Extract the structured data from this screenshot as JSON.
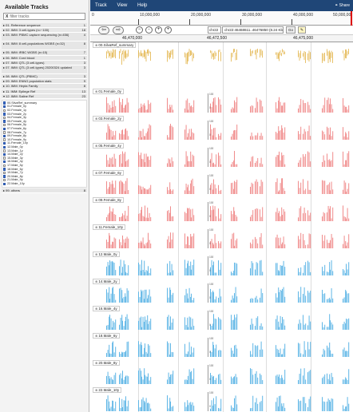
{
  "sidebar": {
    "title": "Available Tracks",
    "filter_placeholder": "filter tracks",
    "filter_clear": "X",
    "categories": [
      {
        "label": "01. Reference sequence",
        "count": "1"
      },
      {
        "label": "02. IMM: 3 cell-types (n=~100)",
        "count": "18"
      },
      {
        "label": "03. IMM: PBMC capture sequencing (n=456)",
        "count": "4"
      },
      {
        "label": "04. IMM: 8 cell-populations WGBS (n=32)",
        "count": "8"
      },
      {
        "label": "05. IMM: iRBC WGBS (n=15)",
        "count": "7"
      },
      {
        "label": "06. IMM: Cord blood",
        "count": "1"
      },
      {
        "label": "07. IMM: QTL (3 cell-types)",
        "count": "3"
      },
      {
        "label": "07. IMM: QTL (3 cell-types) 20200324 updated",
        "count": "3"
      },
      {
        "label": "08. IMM: QTL (PBMC)",
        "count": "3"
      },
      {
        "label": "09. IMM: ENNG population stats",
        "count": "9"
      },
      {
        "label": "10. IMM: Hepta Family",
        "count": "8"
      },
      {
        "label": "11. IMM: Epilege Ref",
        "count": "13"
      },
      {
        "label": "12. IMM: Saline Ref",
        "count": "23"
      }
    ],
    "tracks": [
      {
        "label": "00.SilvaRef_summary",
        "checked": true
      },
      {
        "label": "01.Female_0y",
        "checked": true
      },
      {
        "label": "02.Female_1y",
        "checked": false
      },
      {
        "label": "03.Female_2y",
        "checked": true
      },
      {
        "label": "04.Female_3y",
        "checked": false
      },
      {
        "label": "05.Female_4y",
        "checked": true
      },
      {
        "label": "06.Female_5y",
        "checked": false
      },
      {
        "label": "07.Female_6y",
        "checked": true
      },
      {
        "label": "08.Female_7y",
        "checked": false
      },
      {
        "label": "09.Female_8y",
        "checked": true
      },
      {
        "label": "10.Female_9y",
        "checked": false
      },
      {
        "label": "11.Female_10y",
        "checked": true
      },
      {
        "label": "12.Male_0y",
        "checked": true
      },
      {
        "label": "13.Male_1y",
        "checked": false
      },
      {
        "label": "14.Male_2y",
        "checked": true
      },
      {
        "label": "15.Male_3y",
        "checked": false
      },
      {
        "label": "16.Male_4y",
        "checked": true
      },
      {
        "label": "17.Male_5y",
        "checked": false
      },
      {
        "label": "18.Male_6y",
        "checked": true
      },
      {
        "label": "19.Male_7y",
        "checked": false
      },
      {
        "label": "20.Male_8y",
        "checked": true
      },
      {
        "label": "21.Male_9y",
        "checked": false
      },
      {
        "label": "22.Male_10y",
        "checked": true
      }
    ],
    "others": {
      "label": "99. others",
      "count": "8"
    }
  },
  "menubar": {
    "items": [
      "Track",
      "View",
      "Help"
    ],
    "share": "Share",
    "share_icon": "link-icon",
    "color": "#1f4677"
  },
  "overview": {
    "labels": [
      "0",
      "10,000,000",
      "20,000,000",
      "30,000,000",
      "40,000,000",
      "50,000,00"
    ]
  },
  "navigation": {
    "back_icon": "arrow-left-icon",
    "forward_icon": "arrow-right-icon",
    "zoom_icons": [
      "zoom-out-icon",
      "zoom-out-small-icon",
      "zoom-in-small-icon",
      "zoom-in-icon"
    ],
    "ref_seq": "chr22",
    "location": "chr22:46468611..46476850 (8.24 Kb)",
    "go_label": "Go",
    "highlight_icon": "highlighter-icon"
  },
  "ruler": {
    "labels": [
      "46,470,000",
      "46,472,500",
      "46,475,000"
    ]
  },
  "tracks": {
    "female_color": "#f08b8b",
    "male_color": "#5fb6e6",
    "summary_color": "#e2b347",
    "axis_labels": {
      "top": "100",
      "zero": "0"
    },
    "items": [
      {
        "label": "00.SilvaRef_summary",
        "kind": "summary"
      },
      {
        "label": "01.Female_0y",
        "kind": "female"
      },
      {
        "label": "03.Female_2y",
        "kind": "female"
      },
      {
        "label": "05.Female_4y",
        "kind": "female"
      },
      {
        "label": "07.Female_6y",
        "kind": "female"
      },
      {
        "label": "09.Female_8y",
        "kind": "female"
      },
      {
        "label": "11.Female_10y",
        "kind": "female"
      },
      {
        "label": "12.Male_0y",
        "kind": "male"
      },
      {
        "label": "14.Male_2y",
        "kind": "male"
      },
      {
        "label": "16.Male_4y",
        "kind": "male"
      },
      {
        "label": "18.Male_6y",
        "kind": "male"
      },
      {
        "label": "20.Male_8y",
        "kind": "male"
      },
      {
        "label": "22.Male_10y",
        "kind": "male"
      }
    ]
  }
}
